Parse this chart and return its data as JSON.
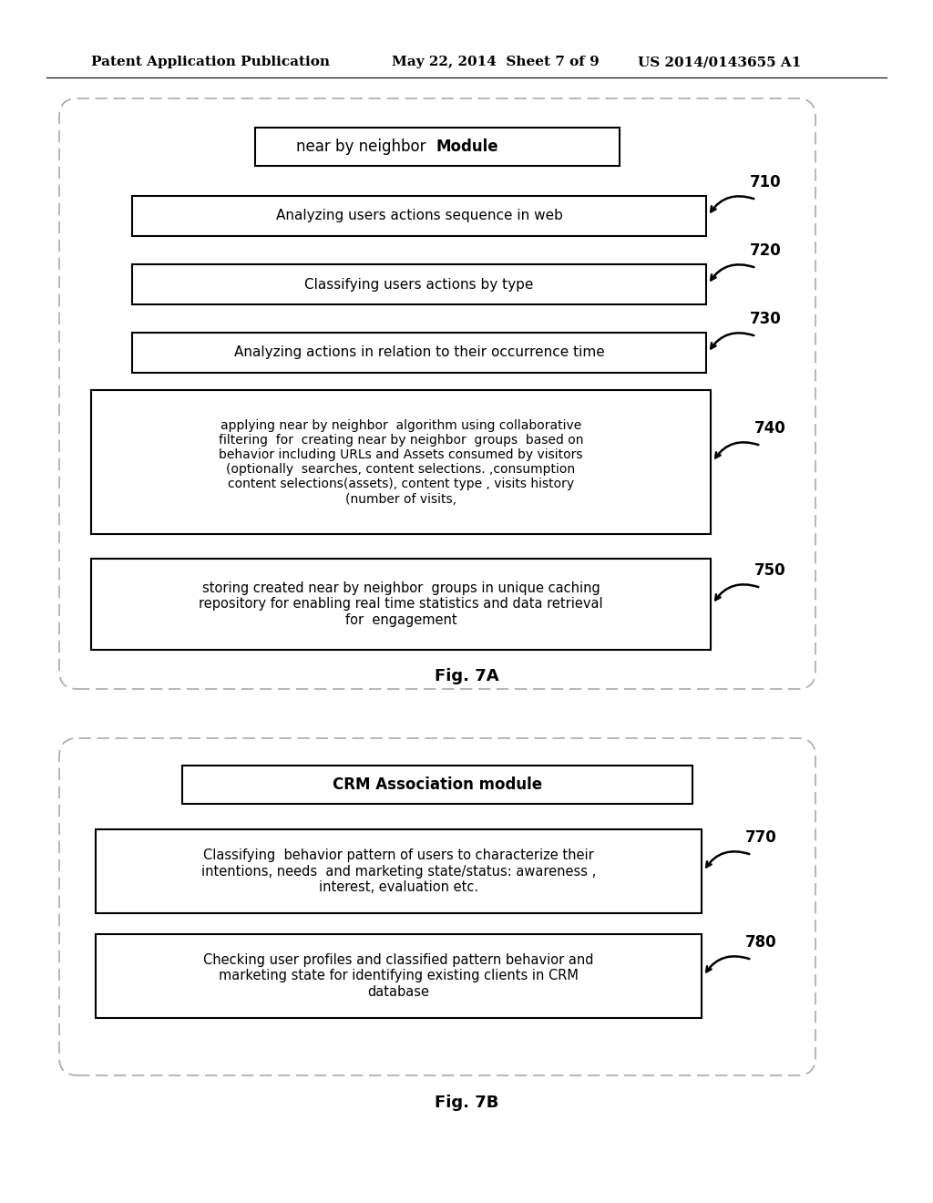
{
  "bg_color": "#ffffff",
  "header_left": "Patent Application Publication",
  "header_mid": "May 22, 2014  Sheet 7 of 9",
  "header_right": "US 2014/0143655 A1",
  "fig7a": {
    "title": "near by neighbor  Module",
    "title_normal": "near by neighbor  ",
    "title_bold": "Module",
    "steps": [
      {
        "text": "Analyzing users actions sequence in web",
        "label": "710",
        "multiline": false
      },
      {
        "text": "Classifying users actions by type",
        "label": "720",
        "multiline": false
      },
      {
        "text": "Analyzing actions in relation to their occurrence time",
        "label": "730",
        "multiline": false
      },
      {
        "text": "applying near by neighbor  algorithm using collaborative\nfiltering  for  creating near by neighbor  groups  based on\nbehavior including URLs and Assets consumed by visitors\n(optionally  searches, content selections. ,consumption\ncontent selections(assets), content type , visits history\n(number of visits,",
        "label": "740",
        "multiline": true
      },
      {
        "text": "storing created near by neighbor  groups in unique caching\nrepository for enabling real time statistics and data retrieval\nfor  engagement",
        "label": "750",
        "multiline": true
      }
    ],
    "fig_label": "Fig. 7A"
  },
  "fig7b": {
    "title": "CRM Association module",
    "steps": [
      {
        "text": "Classifying  behavior pattern of users to characterize their\nintentions, needs  and marketing state/status: awareness ,\ninterest, evaluation etc.",
        "label": "770",
        "multiline": true
      },
      {
        "text": "Checking user profiles and classified pattern behavior and\nmarketing state for identifying existing clients in CRM\ndatabase",
        "label": "780",
        "multiline": true
      }
    ],
    "fig_label": "Fig. 7B"
  }
}
